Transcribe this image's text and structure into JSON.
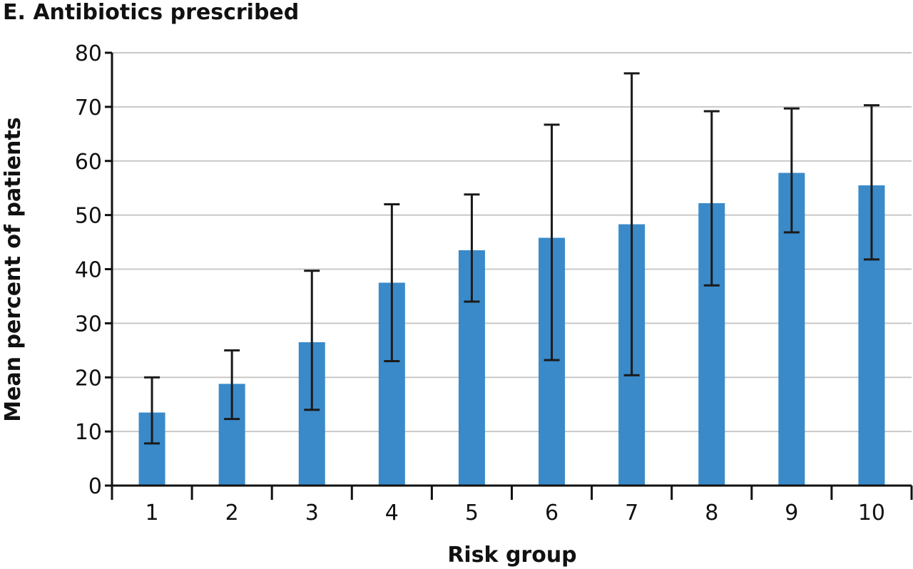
{
  "chart_data": {
    "type": "bar",
    "title": "E. Antibiotics prescribed",
    "xlabel": "Risk group",
    "ylabel": "Mean percent of patients",
    "categories": [
      "1",
      "2",
      "3",
      "4",
      "5",
      "6",
      "7",
      "8",
      "9",
      "10"
    ],
    "values": [
      13.5,
      18.8,
      26.5,
      37.5,
      43.5,
      45.8,
      48.3,
      52.2,
      57.8,
      55.5
    ],
    "error_bars": {
      "upper": [
        20,
        25,
        39.7,
        52,
        53.8,
        66.7,
        76.2,
        69.2,
        69.7,
        70.3
      ],
      "lower": [
        7.8,
        12.3,
        14,
        23,
        34,
        23.2,
        20.4,
        37,
        46.8,
        41.8
      ]
    },
    "ylim": [
      0,
      80
    ],
    "yticks": [
      0,
      10,
      20,
      30,
      40,
      50,
      60,
      70,
      80
    ],
    "grid": true,
    "bar_color": "#3a8ac9",
    "grid_color": "#c8c8c8",
    "axis_color": "#111111"
  }
}
